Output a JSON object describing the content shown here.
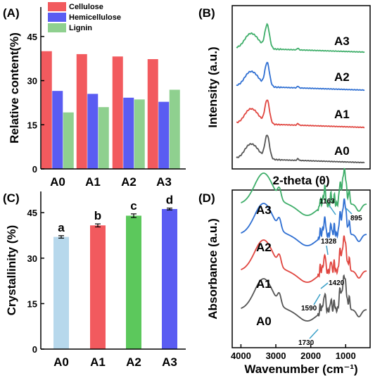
{
  "colors": {
    "cellulose": "#f25a5e",
    "hemicellulose": "#5a5cf2",
    "lignin": "#8fd08f",
    "A0": "#555555",
    "A1": "#e0453f",
    "A2": "#2f6fd2",
    "A3": "#3fae6a",
    "bar_A0": "#b7d8ec",
    "bar_A1": "#f25a5e",
    "bar_A2": "#5cc85c",
    "bar_A3": "#5a5cf2"
  },
  "panels": {
    "A": {
      "letter": "(A)"
    },
    "B": {
      "letter": "(B)"
    },
    "C": {
      "letter": "(C)"
    },
    "D": {
      "letter": "(D)"
    }
  },
  "chart_data": [
    {
      "type": "bar",
      "panel": "(A)",
      "categories": [
        "A0",
        "A1",
        "A2",
        "A3"
      ],
      "series": [
        {
          "name": "Cellulose",
          "values": [
            40.0,
            39.0,
            38.2,
            37.3
          ]
        },
        {
          "name": "Hemicellulose",
          "values": [
            26.5,
            25.5,
            24.2,
            22.8
          ]
        },
        {
          "name": "Lignin",
          "values": [
            19.2,
            21.0,
            23.6,
            26.9
          ]
        }
      ],
      "ylabel": "Relative content(%)",
      "yticks": [
        "0",
        "15",
        "30",
        "45"
      ],
      "ylim": [
        0,
        55
      ],
      "legend_position": "top-left"
    },
    {
      "type": "line",
      "panel": "(B)",
      "xlabel": "2-theta (θ)",
      "ylabel": "Intensity (a.u.)",
      "series": [
        {
          "name": "A0"
        },
        {
          "name": "A1"
        },
        {
          "name": "A2"
        },
        {
          "name": "A3"
        }
      ]
    },
    {
      "type": "bar",
      "panel": "(C)",
      "categories": [
        "A0",
        "A1",
        "A2",
        "A3"
      ],
      "values": [
        37.0,
        40.8,
        44.0,
        46.2
      ],
      "errors": [
        0.4,
        0.5,
        0.6,
        0.3
      ],
      "letters": [
        "a",
        "b",
        "c",
        "d"
      ],
      "ylabel": "Crystallinity (%)",
      "yticks": [
        "0",
        "15",
        "30",
        "45"
      ],
      "ylim": [
        0,
        52
      ]
    },
    {
      "type": "line",
      "panel": "(D)",
      "xlabel": "Wavenumber (cm⁻¹)",
      "ylabel": "Absorbance (a.u.)",
      "xticks": [
        "4000",
        "3000",
        "2000",
        "1000"
      ],
      "xlim": [
        4250,
        300
      ],
      "series": [
        {
          "name": "A0"
        },
        {
          "name": "A1"
        },
        {
          "name": "A2"
        },
        {
          "name": "A3"
        }
      ],
      "annotations": [
        "1163",
        "895",
        "1328",
        "1420",
        "1590",
        "1730"
      ]
    }
  ]
}
